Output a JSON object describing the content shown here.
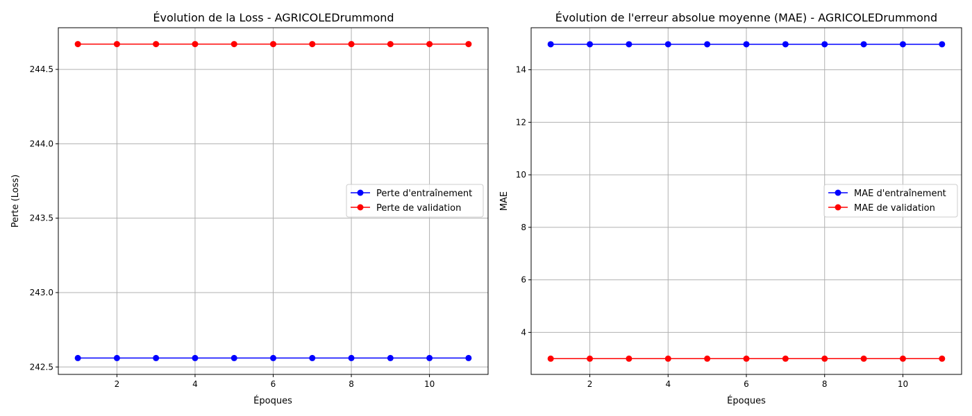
{
  "chart_data": [
    {
      "type": "line",
      "title": "Évolution de la Loss - AGRICOLEDrummond",
      "xlabel": "Époques",
      "ylabel": "Perte (Loss)",
      "x": [
        1,
        2,
        3,
        4,
        5,
        6,
        7,
        8,
        9,
        10,
        11
      ],
      "xlim": [
        0.5,
        11.5
      ],
      "ylim": [
        242.45,
        244.78
      ],
      "xticks": [
        2,
        4,
        6,
        8,
        10
      ],
      "yticks": [
        242.5,
        243.0,
        243.5,
        244.0,
        244.5
      ],
      "ytick_labels": [
        "242.5",
        "243.0",
        "243.5",
        "244.0",
        "244.5"
      ],
      "grid": true,
      "legend_position": "center-right",
      "series": [
        {
          "name": "Perte d'entraînement",
          "color": "#0000ff",
          "marker": "circle",
          "values": [
            242.56,
            242.56,
            242.56,
            242.56,
            242.56,
            242.56,
            242.56,
            242.56,
            242.56,
            242.56,
            242.56
          ]
        },
        {
          "name": "Perte de validation",
          "color": "#ff0000",
          "marker": "circle",
          "values": [
            244.67,
            244.67,
            244.67,
            244.67,
            244.67,
            244.67,
            244.67,
            244.67,
            244.67,
            244.67,
            244.67
          ]
        }
      ]
    },
    {
      "type": "line",
      "title": "Évolution de l'erreur absolue moyenne (MAE) - AGRICOLEDrummond",
      "xlabel": "Époques",
      "ylabel": "MAE",
      "x": [
        1,
        2,
        3,
        4,
        5,
        6,
        7,
        8,
        9,
        10,
        11
      ],
      "xlim": [
        0.5,
        11.5
      ],
      "ylim": [
        2.4,
        15.6
      ],
      "xticks": [
        2,
        4,
        6,
        8,
        10
      ],
      "yticks": [
        4,
        6,
        8,
        10,
        12,
        14
      ],
      "ytick_labels": [
        "4",
        "6",
        "8",
        "10",
        "12",
        "14"
      ],
      "grid": true,
      "legend_position": "center-right",
      "series": [
        {
          "name": "MAE d'entraînement",
          "color": "#0000ff",
          "marker": "circle",
          "values": [
            14.97,
            14.97,
            14.97,
            14.97,
            14.97,
            14.97,
            14.97,
            14.97,
            14.97,
            14.97,
            14.97
          ]
        },
        {
          "name": "MAE de validation",
          "color": "#ff0000",
          "marker": "circle",
          "values": [
            3.0,
            3.0,
            3.0,
            3.0,
            3.0,
            3.0,
            3.0,
            3.0,
            3.0,
            3.0,
            3.0
          ]
        }
      ]
    }
  ]
}
